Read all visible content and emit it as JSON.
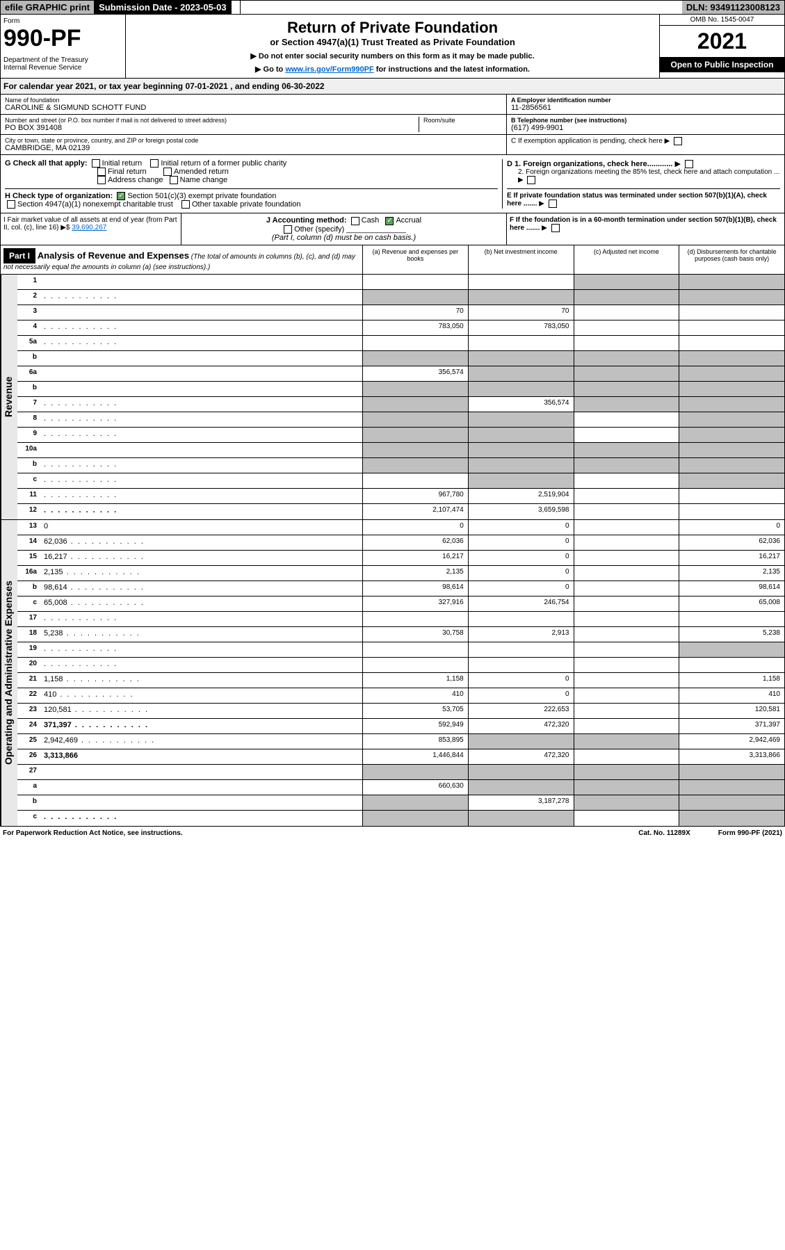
{
  "top": {
    "efile": "efile GRAPHIC print",
    "sub_label": "Submission Date - 2023-05-03",
    "dln": "DLN: 93491123008123"
  },
  "header": {
    "form": "Form",
    "num": "990-PF",
    "dept": "Department of the Treasury\nInternal Revenue Service",
    "title": "Return of Private Foundation",
    "subtitle": "or Section 4947(a)(1) Trust Treated as Private Foundation",
    "note1": "▶ Do not enter social security numbers on this form as it may be made public.",
    "note2": "▶ Go to www.irs.gov/Form990PF for instructions and the latest information.",
    "link": "www.irs.gov/Form990PF",
    "omb": "OMB No. 1545-0047",
    "year": "2021",
    "open": "Open to Public Inspection"
  },
  "cal": "For calendar year 2021, or tax year beginning 07-01-2021               , and ending 06-30-2022",
  "info": {
    "name_label": "Name of foundation",
    "name": "CAROLINE & SIGMUND SCHOTT FUND",
    "addr_label": "Number and street (or P.O. box number if mail is not delivered to street address)",
    "addr": "PO BOX 391408",
    "room_label": "Room/suite",
    "city_label": "City or town, state or province, country, and ZIP or foreign postal code",
    "city": "CAMBRIDGE, MA  02139",
    "ein_label": "A Employer identification number",
    "ein": "11-2856561",
    "tel_label": "B Telephone number (see instructions)",
    "tel": "(617) 499-9901",
    "c_label": "C If exemption application is pending, check here"
  },
  "g": {
    "label": "G Check all that apply:",
    "initial": "Initial return",
    "initial_former": "Initial return of a former public charity",
    "final": "Final return",
    "amended": "Amended return",
    "address": "Address change",
    "name_chg": "Name change"
  },
  "h": {
    "label": "H Check type of organization:",
    "s501": "Section 501(c)(3) exempt private foundation",
    "s4947": "Section 4947(a)(1) nonexempt charitable trust",
    "other": "Other taxable private foundation"
  },
  "d": {
    "d1": "D 1. Foreign organizations, check here............",
    "d2": "2. Foreign organizations meeting the 85% test, check here and attach computation ...",
    "e": "E  If private foundation status was terminated under section 507(b)(1)(A), check here .......",
    "f": "F  If the foundation is in a 60-month termination under section 507(b)(1)(B), check here ......."
  },
  "i": {
    "label": "I Fair market value of all assets at end of year (from Part II, col. (c), line 16) ▶$",
    "val": "39,690,267"
  },
  "j": {
    "label": "J Accounting method:",
    "cash": "Cash",
    "accrual": "Accrual",
    "other": "Other (specify)",
    "note": "(Part I, column (d) must be on cash basis.)"
  },
  "part1": {
    "label": "Part I",
    "title": "Analysis of Revenue and Expenses",
    "note": "(The total of amounts in columns (b), (c), and (d) may not necessarily equal the amounts in column (a) (see instructions).)",
    "col_a": "(a)   Revenue and expenses per books",
    "col_b": "(b)   Net investment income",
    "col_c": "(c)   Adjusted net income",
    "col_d": "(d)   Disbursements for charitable purposes (cash basis only)"
  },
  "revenue_label": "Revenue",
  "expenses_label": "Operating and Administrative Expenses",
  "rows": [
    {
      "n": "1",
      "d": "",
      "a": "",
      "b": "",
      "c": "",
      "grey_cd": true
    },
    {
      "n": "2",
      "d": "",
      "a": "",
      "b": "",
      "c": "",
      "grey_all": true,
      "dots": true
    },
    {
      "n": "3",
      "d": "",
      "a": "70",
      "b": "70",
      "c": ""
    },
    {
      "n": "4",
      "d": "",
      "a": "783,050",
      "b": "783,050",
      "c": "",
      "dots": true
    },
    {
      "n": "5a",
      "d": "",
      "a": "",
      "b": "",
      "c": "",
      "dots": true
    },
    {
      "n": "b",
      "d": "",
      "a": "",
      "b": "",
      "c": "",
      "grey_all": true
    },
    {
      "n": "6a",
      "d": "",
      "a": "356,574",
      "b": "",
      "c": "",
      "grey_bcd": true
    },
    {
      "n": "b",
      "d": "",
      "a": "",
      "b": "",
      "c": "",
      "grey_all": true
    },
    {
      "n": "7",
      "d": "",
      "a": "",
      "b": "356,574",
      "c": "",
      "grey_a": true,
      "grey_cd": true,
      "dots": true
    },
    {
      "n": "8",
      "d": "",
      "a": "",
      "b": "",
      "c": "",
      "grey_ab": true,
      "grey_d": true,
      "dots": true
    },
    {
      "n": "9",
      "d": "",
      "a": "",
      "b": "",
      "c": "",
      "grey_ab": true,
      "grey_d": true,
      "dots": true
    },
    {
      "n": "10a",
      "d": "",
      "a": "",
      "b": "",
      "c": "",
      "grey_all": true
    },
    {
      "n": "b",
      "d": "",
      "a": "",
      "b": "",
      "c": "",
      "grey_all": true,
      "dots": true
    },
    {
      "n": "c",
      "d": "",
      "a": "",
      "b": "",
      "c": "",
      "grey_b": true,
      "grey_d": true,
      "dots": true
    },
    {
      "n": "11",
      "d": "",
      "a": "967,780",
      "b": "2,519,904",
      "c": "",
      "dots": true
    },
    {
      "n": "12",
      "d": "",
      "a": "2,107,474",
      "b": "3,659,598",
      "c": "",
      "bold": true,
      "dots": true
    }
  ],
  "exp_rows": [
    {
      "n": "13",
      "d": "0",
      "a": "0",
      "b": "0",
      "c": ""
    },
    {
      "n": "14",
      "d": "62,036",
      "a": "62,036",
      "b": "0",
      "c": "",
      "dots": true
    },
    {
      "n": "15",
      "d": "16,217",
      "a": "16,217",
      "b": "0",
      "c": "",
      "dots": true
    },
    {
      "n": "16a",
      "d": "2,135",
      "a": "2,135",
      "b": "0",
      "c": "",
      "dots": true
    },
    {
      "n": "b",
      "d": "98,614",
      "a": "98,614",
      "b": "0",
      "c": "",
      "dots": true
    },
    {
      "n": "c",
      "d": "65,008",
      "a": "327,916",
      "b": "246,754",
      "c": "",
      "dots": true
    },
    {
      "n": "17",
      "d": "",
      "a": "",
      "b": "",
      "c": "",
      "dots": true
    },
    {
      "n": "18",
      "d": "5,238",
      "a": "30,758",
      "b": "2,913",
      "c": "",
      "dots": true
    },
    {
      "n": "19",
      "d": "",
      "a": "",
      "b": "",
      "c": "",
      "grey_d": true,
      "dots": true
    },
    {
      "n": "20",
      "d": "",
      "a": "",
      "b": "",
      "c": "",
      "dots": true
    },
    {
      "n": "21",
      "d": "1,158",
      "a": "1,158",
      "b": "0",
      "c": "",
      "dots": true
    },
    {
      "n": "22",
      "d": "410",
      "a": "410",
      "b": "0",
      "c": "",
      "dots": true
    },
    {
      "n": "23",
      "d": "120,581",
      "a": "53,705",
      "b": "222,653",
      "c": "",
      "dots": true
    },
    {
      "n": "24",
      "d": "371,397",
      "a": "592,949",
      "b": "472,320",
      "c": "",
      "bold": true,
      "dots": true
    },
    {
      "n": "25",
      "d": "2,942,469",
      "a": "853,895",
      "b": "",
      "c": "",
      "grey_bc": true,
      "dots": true
    },
    {
      "n": "26",
      "d": "3,313,866",
      "a": "1,446,844",
      "b": "472,320",
      "c": "",
      "bold": true
    },
    {
      "n": "27",
      "d": "",
      "a": "",
      "b": "",
      "c": "",
      "grey_all": true
    },
    {
      "n": "a",
      "d": "",
      "a": "660,630",
      "b": "",
      "c": "",
      "bold": true,
      "grey_bcd": true
    },
    {
      "n": "b",
      "d": "",
      "a": "",
      "b": "3,187,278",
      "c": "",
      "bold": true,
      "grey_a": true,
      "grey_cd": true
    },
    {
      "n": "c",
      "d": "",
      "a": "",
      "b": "",
      "c": "",
      "bold": true,
      "grey_ab": true,
      "grey_d": true,
      "dots": true
    }
  ],
  "footer": {
    "left": "For Paperwork Reduction Act Notice, see instructions.",
    "mid": "Cat. No. 11289X",
    "right": "Form 990-PF (2021)"
  }
}
